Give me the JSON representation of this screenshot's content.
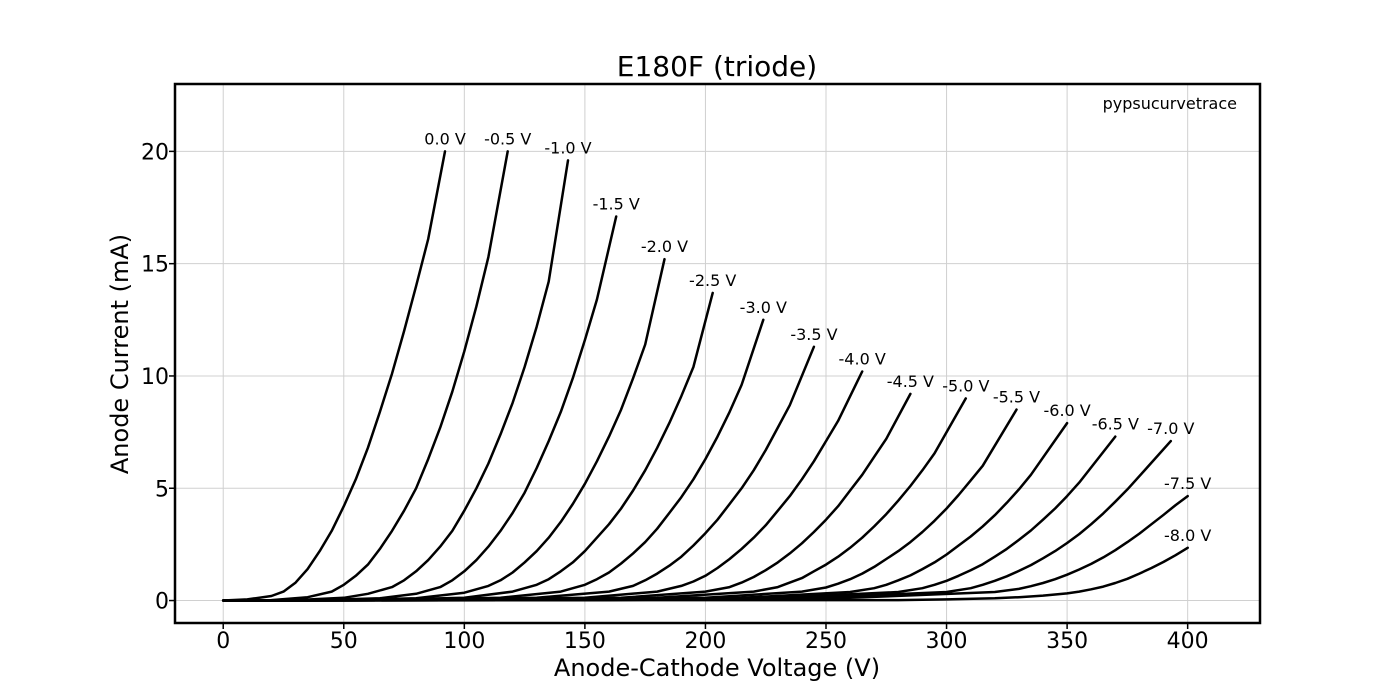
{
  "chart_data": {
    "type": "line",
    "title": "E180F (triode)",
    "xlabel": "Anode-Cathode Voltage (V)",
    "ylabel": "Anode Current (mA)",
    "xlim": [
      -20,
      430
    ],
    "ylim": [
      -1,
      23
    ],
    "xticks": [
      0,
      50,
      100,
      150,
      200,
      250,
      300,
      350,
      400
    ],
    "yticks": [
      0,
      5,
      10,
      15,
      20
    ],
    "xtick_labels": [
      "0",
      "50",
      "100",
      "150",
      "200",
      "250",
      "300",
      "350",
      "400"
    ],
    "ytick_labels": [
      "0",
      "5",
      "10",
      "15",
      "20"
    ],
    "grid": true,
    "watermark": "pypsucurvetrace",
    "series": [
      {
        "name": "0.0 V",
        "label": "0.0 V",
        "grid_v": 0.0,
        "x": [
          0,
          10,
          20,
          25,
          30,
          35,
          40,
          45,
          50,
          55,
          60,
          65,
          70,
          75,
          80,
          85,
          92
        ],
        "y": [
          0,
          0.05,
          0.2,
          0.4,
          0.8,
          1.4,
          2.2,
          3.1,
          4.2,
          5.4,
          6.8,
          8.4,
          10.1,
          12.0,
          14.0,
          16.1,
          20.0
        ]
      },
      {
        "name": "-0.5 V",
        "label": "-0.5 V",
        "grid_v": -0.5,
        "x": [
          0,
          20,
          35,
          45,
          50,
          55,
          60,
          65,
          70,
          75,
          80,
          85,
          90,
          95,
          100,
          105,
          110,
          118
        ],
        "y": [
          0,
          0.02,
          0.15,
          0.4,
          0.7,
          1.1,
          1.6,
          2.3,
          3.1,
          4.0,
          5.0,
          6.3,
          7.7,
          9.3,
          11.1,
          13.1,
          15.3,
          20.0
        ]
      },
      {
        "name": "-1.0 V",
        "label": "-1.0 V",
        "grid_v": -1.0,
        "x": [
          0,
          30,
          50,
          60,
          70,
          75,
          80,
          85,
          90,
          95,
          100,
          105,
          110,
          115,
          120,
          125,
          130,
          135,
          143
        ],
        "y": [
          0,
          0.02,
          0.12,
          0.3,
          0.6,
          0.9,
          1.3,
          1.8,
          2.4,
          3.1,
          4.0,
          5.0,
          6.1,
          7.4,
          8.8,
          10.4,
          12.2,
          14.2,
          19.6
        ]
      },
      {
        "name": "-1.5 V",
        "label": "-1.5 V",
        "grid_v": -1.5,
        "x": [
          0,
          40,
          65,
          80,
          90,
          95,
          100,
          105,
          110,
          115,
          120,
          125,
          130,
          135,
          140,
          145,
          150,
          155,
          163
        ],
        "y": [
          0,
          0.02,
          0.1,
          0.3,
          0.6,
          0.9,
          1.3,
          1.8,
          2.4,
          3.1,
          3.9,
          4.8,
          5.9,
          7.1,
          8.4,
          9.9,
          11.6,
          13.4,
          17.1
        ]
      },
      {
        "name": "-2.0 V",
        "label": "-2.0 V",
        "grid_v": -2.0,
        "x": [
          0,
          50,
          80,
          100,
          110,
          115,
          120,
          125,
          130,
          135,
          140,
          145,
          150,
          155,
          160,
          165,
          170,
          175,
          183
        ],
        "y": [
          0,
          0.02,
          0.1,
          0.35,
          0.65,
          0.9,
          1.25,
          1.7,
          2.2,
          2.8,
          3.5,
          4.3,
          5.2,
          6.2,
          7.3,
          8.5,
          9.9,
          11.4,
          15.2
        ]
      },
      {
        "name": "-2.5 V",
        "label": "-2.5 V",
        "grid_v": -2.5,
        "x": [
          0,
          60,
          100,
          120,
          130,
          135,
          140,
          145,
          150,
          155,
          160,
          165,
          170,
          175,
          180,
          185,
          190,
          195,
          203
        ],
        "y": [
          0,
          0.02,
          0.12,
          0.4,
          0.7,
          0.95,
          1.3,
          1.7,
          2.2,
          2.8,
          3.4,
          4.1,
          4.9,
          5.8,
          6.8,
          7.9,
          9.1,
          10.4,
          13.7
        ]
      },
      {
        "name": "-3.0 V",
        "label": "-3.0 V",
        "grid_v": -3.0,
        "x": [
          0,
          70,
          115,
          140,
          150,
          155,
          160,
          165,
          170,
          175,
          180,
          185,
          190,
          195,
          200,
          205,
          210,
          215,
          224
        ],
        "y": [
          0,
          0.02,
          0.12,
          0.4,
          0.7,
          0.95,
          1.25,
          1.65,
          2.1,
          2.6,
          3.2,
          3.9,
          4.6,
          5.4,
          6.3,
          7.3,
          8.4,
          9.6,
          12.5
        ]
      },
      {
        "name": "-3.5 V",
        "label": "-3.5 V",
        "grid_v": -3.5,
        "x": [
          0,
          80,
          130,
          160,
          170,
          175,
          180,
          185,
          190,
          195,
          200,
          205,
          210,
          215,
          220,
          225,
          230,
          235,
          245
        ],
        "y": [
          0,
          0.02,
          0.12,
          0.4,
          0.65,
          0.9,
          1.2,
          1.55,
          1.95,
          2.45,
          3.0,
          3.6,
          4.3,
          5.0,
          5.8,
          6.7,
          7.7,
          8.7,
          11.3
        ]
      },
      {
        "name": "-4.0 V",
        "label": "-4.0 V",
        "grid_v": -4.0,
        "x": [
          0,
          90,
          150,
          180,
          190,
          195,
          200,
          205,
          210,
          215,
          220,
          225,
          230,
          235,
          240,
          245,
          250,
          255,
          265
        ],
        "y": [
          0,
          0.02,
          0.12,
          0.4,
          0.65,
          0.85,
          1.1,
          1.45,
          1.85,
          2.3,
          2.8,
          3.35,
          4.0,
          4.65,
          5.4,
          6.2,
          7.1,
          8.0,
          10.2
        ]
      },
      {
        "name": "-4.5 V",
        "label": "-4.5 V",
        "grid_v": -4.5,
        "x": [
          0,
          100,
          165,
          200,
          210,
          215,
          220,
          225,
          230,
          235,
          240,
          245,
          250,
          255,
          260,
          265,
          270,
          275,
          285
        ],
        "y": [
          0,
          0.02,
          0.12,
          0.4,
          0.6,
          0.8,
          1.05,
          1.35,
          1.7,
          2.1,
          2.55,
          3.05,
          3.6,
          4.2,
          4.9,
          5.6,
          6.4,
          7.2,
          9.2
        ]
      },
      {
        "name": "-5.0 V",
        "label": "-5.0 V",
        "grid_v": -5.0,
        "x": [
          0,
          110,
          180,
          220,
          230,
          235,
          240,
          245,
          250,
          255,
          260,
          265,
          270,
          275,
          280,
          285,
          290,
          295,
          308
        ],
        "y": [
          0,
          0.02,
          0.12,
          0.4,
          0.6,
          0.8,
          1.0,
          1.3,
          1.6,
          1.95,
          2.35,
          2.8,
          3.3,
          3.85,
          4.45,
          5.1,
          5.8,
          6.55,
          9.0
        ]
      },
      {
        "name": "-5.5 V",
        "label": "-5.5 V",
        "grid_v": -5.5,
        "x": [
          0,
          120,
          200,
          240,
          250,
          255,
          260,
          265,
          270,
          275,
          280,
          285,
          290,
          295,
          300,
          305,
          310,
          315,
          329
        ],
        "y": [
          0,
          0.02,
          0.12,
          0.4,
          0.58,
          0.75,
          0.95,
          1.2,
          1.5,
          1.85,
          2.2,
          2.6,
          3.05,
          3.55,
          4.1,
          4.7,
          5.35,
          6.0,
          8.5
        ]
      },
      {
        "name": "-6.0 V",
        "label": "-6.0 V",
        "grid_v": -6.0,
        "x": [
          0,
          130,
          215,
          260,
          270,
          275,
          280,
          285,
          290,
          295,
          300,
          305,
          310,
          315,
          320,
          325,
          330,
          335,
          350
        ],
        "y": [
          0,
          0.02,
          0.12,
          0.38,
          0.55,
          0.7,
          0.9,
          1.12,
          1.4,
          1.7,
          2.05,
          2.45,
          2.85,
          3.3,
          3.8,
          4.35,
          4.95,
          5.6,
          7.9
        ]
      },
      {
        "name": "-6.5 V",
        "label": "-6.5 V",
        "grid_v": -6.5,
        "x": [
          0,
          140,
          230,
          280,
          290,
          295,
          300,
          305,
          310,
          315,
          320,
          325,
          330,
          335,
          340,
          345,
          350,
          355,
          370
        ],
        "y": [
          0,
          0.02,
          0.12,
          0.38,
          0.55,
          0.7,
          0.88,
          1.1,
          1.35,
          1.62,
          1.95,
          2.3,
          2.7,
          3.12,
          3.6,
          4.1,
          4.65,
          5.25,
          7.3
        ]
      },
      {
        "name": "-7.0 V",
        "label": "-7.0 V",
        "grid_v": -7.0,
        "x": [
          0,
          150,
          245,
          300,
          310,
          315,
          320,
          325,
          330,
          335,
          340,
          345,
          350,
          355,
          360,
          365,
          370,
          375,
          383,
          393
        ],
        "y": [
          0,
          0.02,
          0.12,
          0.38,
          0.55,
          0.7,
          0.88,
          1.08,
          1.32,
          1.58,
          1.88,
          2.2,
          2.56,
          2.96,
          3.4,
          3.88,
          4.4,
          4.95,
          5.9,
          7.1
        ]
      },
      {
        "name": "-7.5 V",
        "label": "-7.5 V",
        "grid_v": -7.5,
        "x": [
          0,
          160,
          260,
          320,
          330,
          335,
          340,
          345,
          350,
          355,
          360,
          365,
          370,
          375,
          380,
          385,
          390,
          395,
          400
        ],
        "y": [
          0,
          0.02,
          0.12,
          0.38,
          0.52,
          0.64,
          0.78,
          0.95,
          1.15,
          1.38,
          1.63,
          1.92,
          2.24,
          2.6,
          2.98,
          3.4,
          3.82,
          4.25,
          4.65
        ]
      },
      {
        "name": "-8.0 V",
        "label": "-8.0 V",
        "grid_v": -8.0,
        "x": [
          0,
          170,
          280,
          300,
          320,
          330,
          340,
          350,
          355,
          360,
          365,
          370,
          375,
          380,
          385,
          390,
          395,
          400
        ],
        "y": [
          0,
          0.02,
          0.02,
          0.05,
          0.1,
          0.15,
          0.22,
          0.32,
          0.4,
          0.5,
          0.62,
          0.78,
          0.97,
          1.2,
          1.45,
          1.72,
          2.02,
          2.35
        ]
      }
    ]
  }
}
